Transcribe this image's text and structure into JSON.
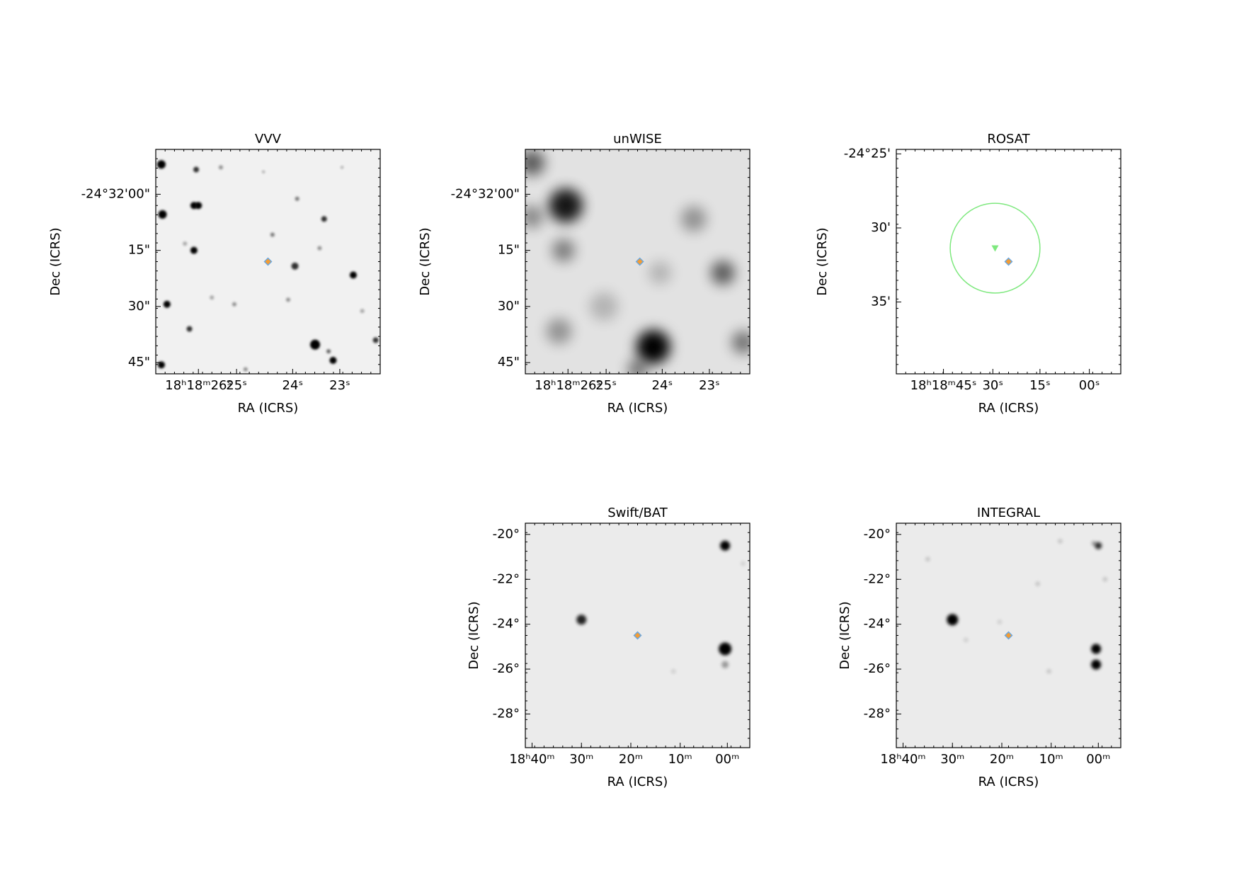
{
  "panels": [
    {
      "title": "VVV",
      "x_label": "RA (ICRS)",
      "y_label": "Dec (ICRS)",
      "x_ticks": [
        "18ʰ18ᵐ26ˢ",
        "25ˢ",
        "24ˢ",
        "23ˢ"
      ],
      "y_ticks": [
        "-24°32'00\"",
        "15\"",
        "30\"",
        "45\""
      ]
    },
    {
      "title": "unWISE",
      "x_label": "RA (ICRS)",
      "y_label": "Dec (ICRS)",
      "x_ticks": [
        "18ʰ18ᵐ26ˢ",
        "25ˢ",
        "24ˢ",
        "23ˢ"
      ],
      "y_ticks": [
        "-24°32'00\"",
        "15\"",
        "30\"",
        "45\""
      ]
    },
    {
      "title": "ROSAT",
      "x_label": "RA (ICRS)",
      "y_label": "Dec (ICRS)",
      "x_ticks": [
        "18ʰ18ᵐ45ˢ",
        "30ˢ",
        "15ˢ",
        "00ˢ"
      ],
      "y_ticks": [
        "-24°25'",
        "30'",
        "35'"
      ]
    },
    {
      "title": "Swift/BAT",
      "x_label": "RA (ICRS)",
      "y_label": "Dec (ICRS)",
      "x_ticks": [
        "18ʰ40ᵐ",
        "30ᵐ",
        "20ᵐ",
        "10ᵐ",
        "00ᵐ"
      ],
      "y_ticks": [
        "-20°",
        "-22°",
        "-24°",
        "-26°",
        "-28°"
      ]
    },
    {
      "title": "INTEGRAL",
      "x_label": "RA (ICRS)",
      "y_label": "Dec (ICRS)",
      "x_ticks": [
        "18ʰ40ᵐ",
        "30ᵐ",
        "20ᵐ",
        "10ᵐ",
        "00ᵐ"
      ],
      "y_ticks": [
        "-20°",
        "-22°",
        "-24°",
        "-26°",
        "-28°"
      ]
    }
  ]
}
